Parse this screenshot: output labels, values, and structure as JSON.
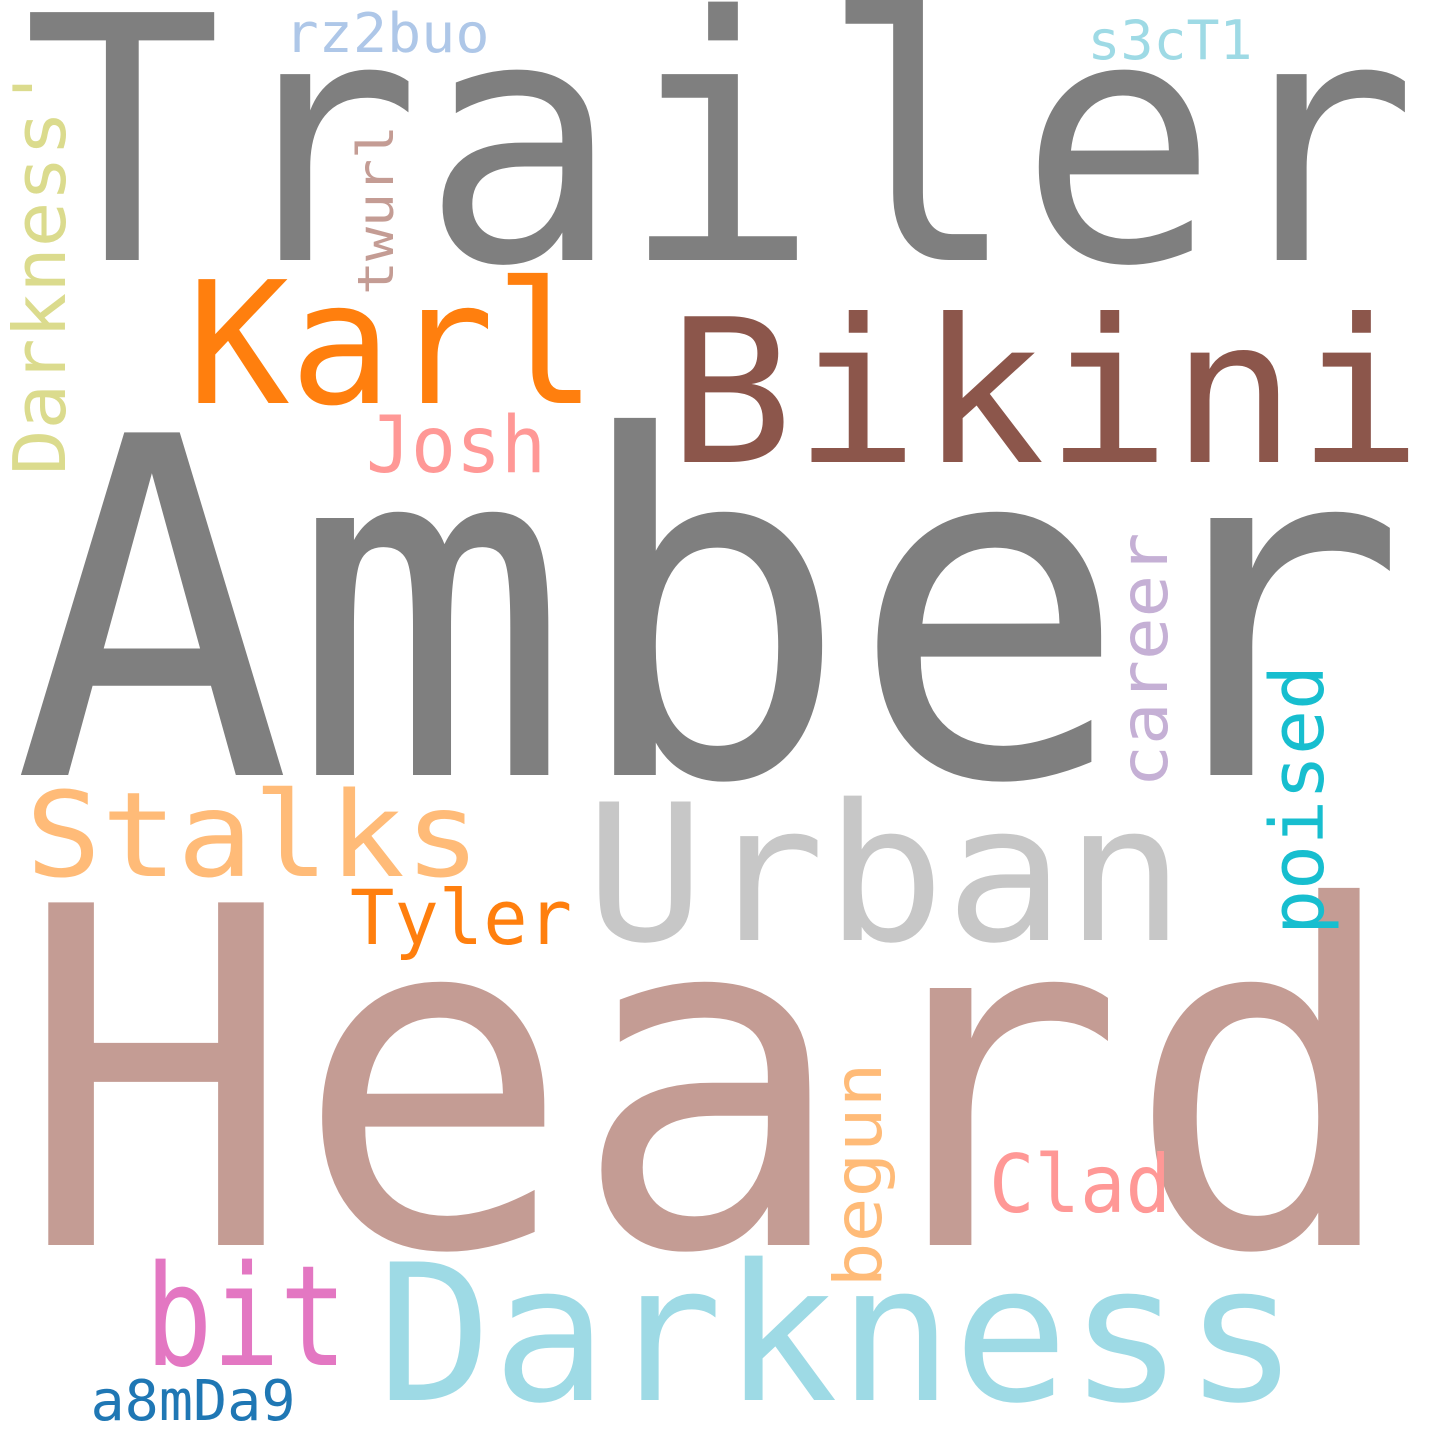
{
  "words": {
    "trailer": {
      "text": "Trailer",
      "color": "#7f7f7f"
    },
    "amber": {
      "text": "Amber",
      "color": "#7f7f7f"
    },
    "heard": {
      "text": "Heard",
      "color": "#c49c94"
    },
    "bikini": {
      "text": "Bikini",
      "color": "#8c564b"
    },
    "karl": {
      "text": "Karl",
      "color": "#ff7f0e"
    },
    "urban": {
      "text": "Urban",
      "color": "#c7c7c7"
    },
    "darkness": {
      "text": "Darkness",
      "color": "#9edae5"
    },
    "stalks": {
      "text": "Stalks",
      "color": "#ffbb78"
    },
    "darkness2": {
      "text": "Darkness'",
      "color": "#dbdb8d"
    },
    "poised": {
      "text": "poised",
      "color": "#17becf"
    },
    "career": {
      "text": "career",
      "color": "#c5b0d5"
    },
    "josh": {
      "text": "Josh",
      "color": "#ff9896"
    },
    "tyler": {
      "text": "Tyler",
      "color": "#ff7f0e"
    },
    "bit": {
      "text": "bit",
      "color": "#e377c2"
    },
    "begun": {
      "text": "begun",
      "color": "#ffbb78"
    },
    "clad": {
      "text": "Clad",
      "color": "#ff9896"
    },
    "twurl": {
      "text": "twurl",
      "color": "#c49c94"
    },
    "rz2buo": {
      "text": "rz2buo",
      "color": "#aec7e8"
    },
    "s3ct1": {
      "text": "s3cT1",
      "color": "#9edae5"
    },
    "a8mda9": {
      "text": "a8mDa9",
      "color": "#1f77b4"
    }
  }
}
